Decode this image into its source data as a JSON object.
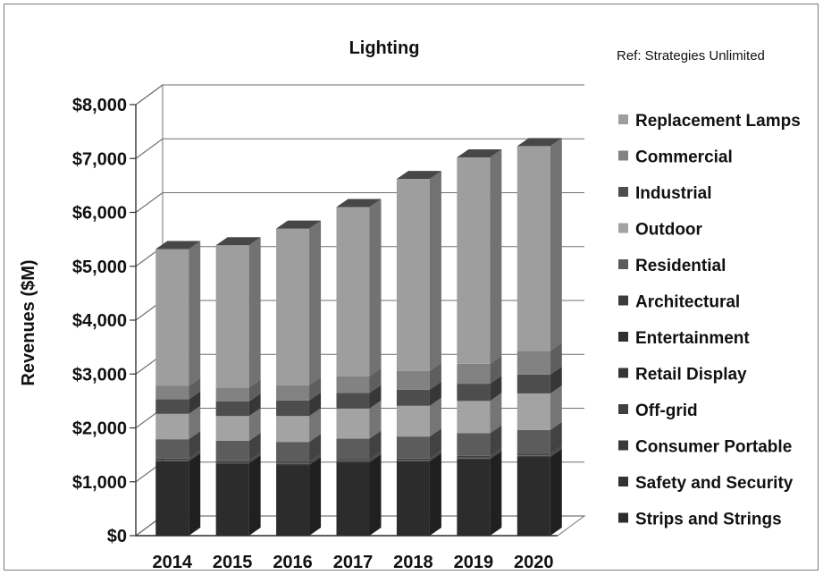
{
  "chart_data": {
    "type": "bar",
    "stacked": true,
    "three_d": true,
    "title": "Lighting",
    "note": "Ref: Strategies Unlimited",
    "ylabel": "Revenues ($M)",
    "xlabel": "",
    "ylim": [
      0,
      8000
    ],
    "yticks": [
      0,
      1000,
      2000,
      3000,
      4000,
      5000,
      6000,
      7000,
      8000
    ],
    "ytick_labels": [
      "$0",
      "$1,000",
      "$2,000",
      "$3,000",
      "$4,000",
      "$5,000",
      "$6,000",
      "$7,000",
      "$8,000"
    ],
    "grid": true,
    "legend_position": "right",
    "categories": [
      "2014",
      "2015",
      "2016",
      "2017",
      "2018",
      "2019",
      "2020"
    ],
    "series": [
      {
        "name": "Strips and Strings",
        "color": "#2c2c2c",
        "values": [
          1380,
          1340,
          1310,
          1360,
          1380,
          1420,
          1460
        ]
      },
      {
        "name": "Safety and Security",
        "color": "#333333",
        "values": [
          10,
          10,
          10,
          10,
          10,
          10,
          10
        ]
      },
      {
        "name": "Consumer Portable",
        "color": "#3a3a3a",
        "values": [
          10,
          10,
          10,
          10,
          10,
          10,
          10
        ]
      },
      {
        "name": "Off-grid",
        "color": "#404040",
        "values": [
          10,
          10,
          10,
          10,
          10,
          10,
          10
        ]
      },
      {
        "name": "Retail Display",
        "color": "#363636",
        "values": [
          10,
          10,
          10,
          10,
          10,
          10,
          10
        ]
      },
      {
        "name": "Entertainment",
        "color": "#303030",
        "values": [
          10,
          10,
          10,
          10,
          10,
          10,
          10
        ]
      },
      {
        "name": "Architectural",
        "color": "#3c3c3c",
        "values": [
          10,
          10,
          10,
          10,
          10,
          10,
          10
        ]
      },
      {
        "name": "Residential",
        "color": "#5c5c5c",
        "values": [
          350,
          360,
          370,
          380,
          400,
          420,
          440
        ]
      },
      {
        "name": "Outdoor",
        "color": "#a3a3a3",
        "values": [
          470,
          460,
          480,
          560,
          570,
          600,
          680
        ]
      },
      {
        "name": "Industrial",
        "color": "#4d4d4d",
        "values": [
          270,
          270,
          290,
          290,
          300,
          320,
          350
        ]
      },
      {
        "name": "Commercial",
        "color": "#828282",
        "values": [
          250,
          260,
          280,
          310,
          350,
          370,
          440
        ]
      },
      {
        "name": "Replacement Lamps",
        "color": "#9e9e9e",
        "values": [
          2540,
          2640,
          2910,
          3140,
          3560,
          3830,
          3800
        ]
      }
    ],
    "legend_order": [
      "Replacement Lamps",
      "Commercial",
      "Industrial",
      "Outdoor",
      "Residential",
      "Architectural",
      "Entertainment",
      "Retail Display",
      "Off-grid",
      "Consumer Portable",
      "Safety and Security",
      "Strips and Strings"
    ]
  }
}
